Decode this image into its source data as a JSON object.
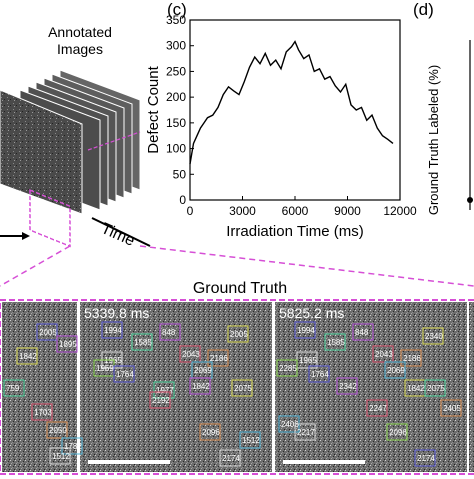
{
  "panel_labels": {
    "c": "(c)",
    "d": "(d)"
  },
  "stack": {
    "title_line1": "Annotated",
    "title_line2": "Images",
    "time_label": "Time"
  },
  "chart_data": {
    "type": "line",
    "xlabel": "Irradiation Time (ms)",
    "ylabel": "Defect Count",
    "xlim": [
      0,
      12000
    ],
    "ylim": [
      0,
      350
    ],
    "xticks": [
      0,
      3000,
      6000,
      9000,
      12000
    ],
    "yticks": [
      0,
      50,
      100,
      150,
      200,
      250,
      300,
      350
    ],
    "series": [
      {
        "x": [
          0,
          200,
          400,
          600,
          800,
          1000,
          1300,
          1600,
          1900,
          2200,
          2500,
          2800,
          3100,
          3400,
          3700,
          4000,
          4300,
          4600,
          4900,
          5200,
          5500,
          5800,
          6000,
          6200,
          6500,
          6800,
          7100,
          7400,
          7700,
          8000,
          8300,
          8600,
          8900,
          9200,
          9500,
          9800,
          10100,
          10400,
          10700,
          11000,
          11300,
          11600
        ],
        "y": [
          70,
          110,
          125,
          140,
          150,
          160,
          165,
          180,
          205,
          220,
          212,
          205,
          230,
          258,
          278,
          265,
          285,
          262,
          272,
          255,
          288,
          298,
          308,
          292,
          275,
          282,
          250,
          255,
          235,
          240,
          222,
          210,
          225,
          185,
          175,
          180,
          155,
          165,
          140,
          125,
          118,
          110
        ]
      }
    ]
  },
  "panel_d": {
    "ylabel": "Ground Truth Labeled (%)"
  },
  "ground_truth": {
    "title": "Ground Truth",
    "frames": [
      {
        "timestamp": ""
      },
      {
        "timestamp": "5339.8 ms"
      },
      {
        "timestamp": "5825.2 ms"
      }
    ],
    "frame0_labels": [
      "2005",
      "1895",
      "1842",
      "759",
      "1703",
      "2050",
      "1782",
      "1512"
    ],
    "frame1_labels": [
      "1994",
      "848",
      "2005",
      "1585",
      "2043",
      "2186",
      "2069",
      "1965",
      "1969",
      "1764",
      "1842",
      "2075",
      "1977",
      "2192",
      "2096",
      "1512",
      "2174"
    ],
    "frame2_labels": [
      "1994",
      "848",
      "2340",
      "1585",
      "2043",
      "2186",
      "2069",
      "1965",
      "2285",
      "1764",
      "2342",
      "1842",
      "2075",
      "2247",
      "2405",
      "2406",
      "2217",
      "2096",
      "2174"
    ]
  }
}
